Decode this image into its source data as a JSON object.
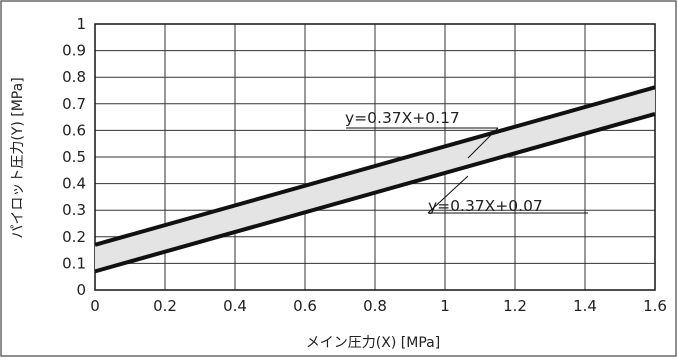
{
  "chart_data": {
    "type": "line",
    "xlabel": "メイン圧力(X) [MPa]",
    "ylabel": "パイロット圧力(Y) [MPa]",
    "xlim": [
      0,
      1.6
    ],
    "ylim": [
      0,
      1
    ],
    "x_ticks": [
      "0",
      "0.2",
      "0.4",
      "0.6",
      "0.8",
      "1",
      "1.2",
      "1.4",
      "1.6"
    ],
    "y_ticks": [
      "0",
      "0.1",
      "0.2",
      "0.3",
      "0.4",
      "0.5",
      "0.6",
      "0.7",
      "0.8",
      "0.9",
      "1"
    ],
    "grid": true,
    "fill_between_series": true,
    "series": [
      {
        "name": "y=0.37X+0.17",
        "x": [
          0,
          1.6
        ],
        "y": [
          0.17,
          0.762
        ]
      },
      {
        "name": "y=0.37X+0.07",
        "x": [
          0,
          1.6
        ],
        "y": [
          0.07,
          0.662
        ]
      }
    ],
    "annotations": [
      "y=0.37X+0.17",
      "y=0.37X+0.07"
    ]
  }
}
